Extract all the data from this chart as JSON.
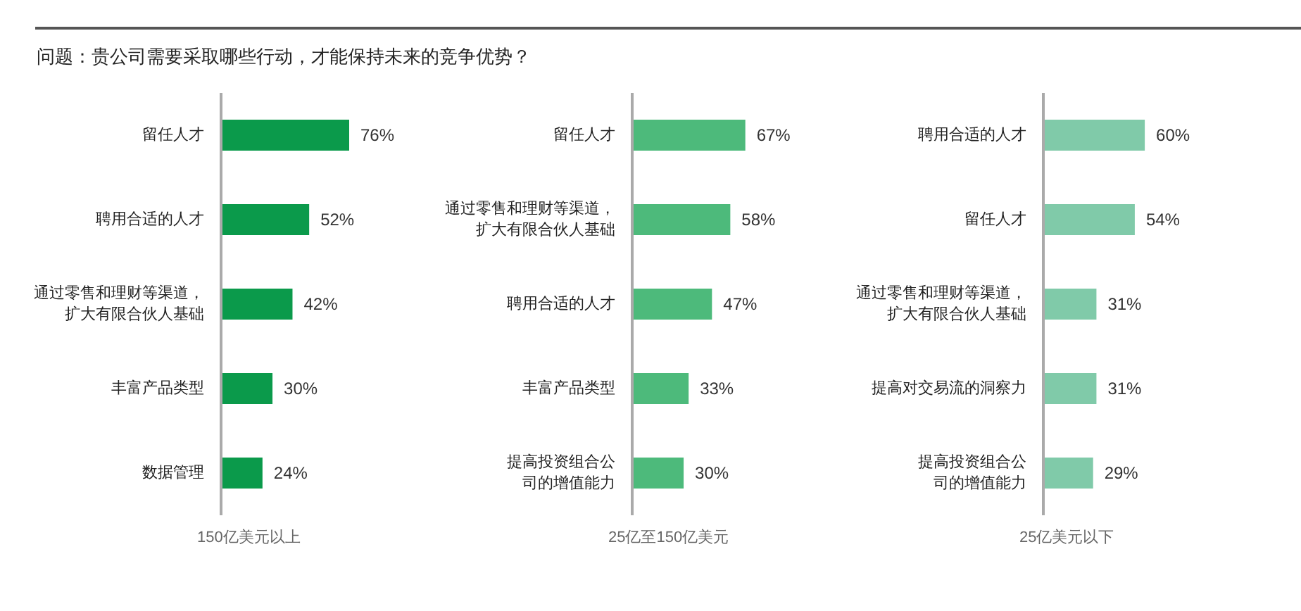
{
  "chart_data": [
    {
      "type": "bar",
      "orientation": "horizontal",
      "title": "问题：贵公司需要采取哪些行动，才能保持未来的竞争优势？",
      "xlabel": "150亿美元以上",
      "categories": [
        "留任人才",
        "聘用合适的人才",
        "通过零售和理财等渠道，扩大有限合伙人基础",
        "丰富产品类型",
        "数据管理"
      ],
      "values": [
        76,
        52,
        42,
        30,
        24
      ],
      "value_labels": [
        "76%",
        "52%",
        "42%",
        "30%",
        "24%"
      ],
      "color": "#0b9a4b"
    },
    {
      "type": "bar",
      "orientation": "horizontal",
      "xlabel": "25亿至150亿美元",
      "categories": [
        "留任人才",
        "通过零售和理财等渠道，扩大有限合伙人基础",
        "聘用合适的人才",
        "丰富产品类型",
        "提高投资组合公司的增值能力"
      ],
      "values": [
        67,
        58,
        47,
        33,
        30
      ],
      "value_labels": [
        "67%",
        "58%",
        "47%",
        "33%",
        "30%"
      ],
      "color": "#4dba7b"
    },
    {
      "type": "bar",
      "orientation": "horizontal",
      "xlabel": "25亿美元以下",
      "categories": [
        "聘用合适的人才",
        "留任人才",
        "通过零售和理财等渠道，扩大有限合伙人基础",
        "提高对交易流的洞察力",
        "提高投资组合公司的增值能力"
      ],
      "values": [
        60,
        54,
        31,
        31,
        29
      ],
      "value_labels": [
        "60%",
        "54%",
        "31%",
        "31%",
        "29%"
      ],
      "color": "#80caa9"
    }
  ]
}
